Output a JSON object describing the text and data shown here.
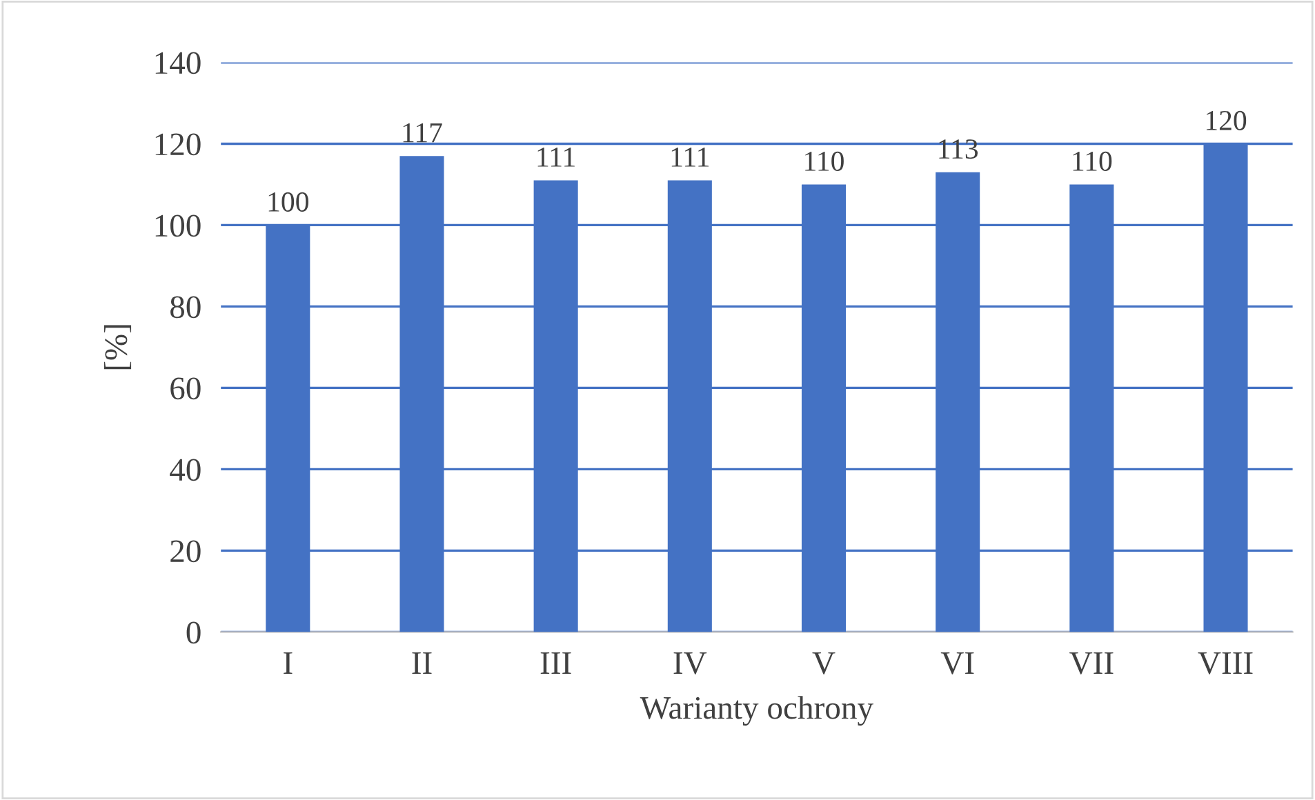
{
  "chart_data": {
    "type": "bar",
    "xlabel": "Warianty ochrony",
    "ylabel": "[%]",
    "categories": [
      "I",
      "II",
      "III",
      "IV",
      "V",
      "VI",
      "VII",
      "VIII"
    ],
    "values": [
      100,
      117,
      111,
      111,
      110,
      113,
      110,
      120
    ],
    "color": "#4472c4",
    "ylim": [
      0,
      140
    ],
    "yticks": [
      0,
      20,
      40,
      60,
      80,
      100,
      120,
      140
    ],
    "grid": "y",
    "data_labels": true
  }
}
